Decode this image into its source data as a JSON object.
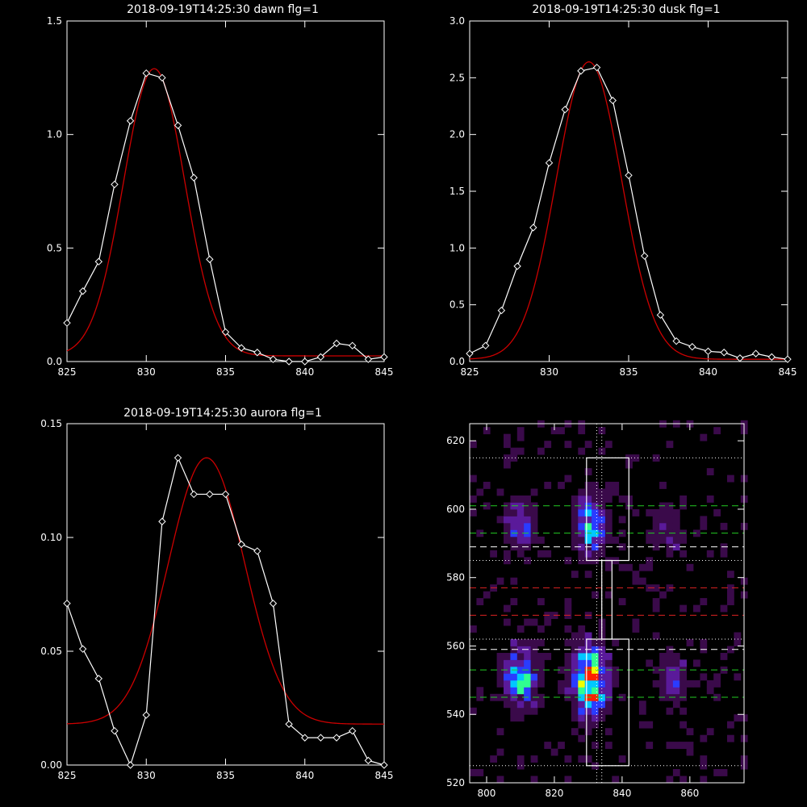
{
  "chart_data": [
    {
      "type": "line",
      "title": "2018-09-19T14:25:30 dawn flg=1",
      "xlim": [
        825,
        845
      ],
      "ylim": [
        0,
        1.5
      ],
      "x_ticks": [
        "825",
        "830",
        "835",
        "840",
        "845"
      ],
      "y_ticks": [
        "0.0",
        "0.5",
        "1.0",
        "1.5"
      ],
      "colors": {
        "observed": "#ffffff",
        "fit": "#cc0000"
      },
      "series": [
        {
          "role": "observed",
          "marker": "diamond",
          "x": [
            825,
            826,
            827,
            828,
            829,
            830,
            831,
            832,
            833,
            834,
            835,
            836,
            837,
            838,
            839,
            840,
            841,
            842,
            843,
            844,
            845
          ],
          "y": [
            0.17,
            0.31,
            0.44,
            0.78,
            1.06,
            1.27,
            1.25,
            1.04,
            0.81,
            0.45,
            0.13,
            0.06,
            0.04,
            0.01,
            0.0,
            0.0,
            0.02,
            0.08,
            0.07,
            0.01,
            0.02
          ]
        },
        {
          "role": "fit",
          "fit": {
            "shape": "gaussian",
            "amplitude": 1.265,
            "center": 830.5,
            "sigma": 1.93,
            "offset": 0.025
          }
        }
      ]
    },
    {
      "type": "line",
      "title": "2018-09-19T14:25:30 dusk flg=1",
      "xlim": [
        825,
        845
      ],
      "ylim": [
        0,
        3.0
      ],
      "x_ticks": [
        "825",
        "830",
        "835",
        "840",
        "845"
      ],
      "y_ticks": [
        "0.0",
        "0.5",
        "1.0",
        "1.5",
        "2.0",
        "2.5",
        "3.0"
      ],
      "colors": {
        "observed": "#ffffff",
        "fit": "#cc0000"
      },
      "series": [
        {
          "role": "observed",
          "marker": "diamond",
          "x": [
            825,
            826,
            827,
            828,
            829,
            830,
            831,
            832,
            833,
            834,
            835,
            836,
            837,
            838,
            839,
            840,
            841,
            842,
            843,
            844,
            845
          ],
          "y": [
            0.07,
            0.14,
            0.45,
            0.84,
            1.18,
            1.75,
            2.22,
            2.56,
            2.59,
            2.3,
            1.64,
            0.93,
            0.41,
            0.18,
            0.13,
            0.09,
            0.08,
            0.03,
            0.07,
            0.04,
            0.02
          ]
        },
        {
          "role": "fit",
          "fit": {
            "shape": "gaussian",
            "amplitude": 2.62,
            "center": 832.5,
            "sigma": 2.05,
            "offset": 0.02
          }
        }
      ]
    },
    {
      "type": "line",
      "title": "2018-09-19T14:25:30 aurora flg=1",
      "xlim": [
        825,
        845
      ],
      "ylim": [
        0,
        0.15
      ],
      "x_ticks": [
        "825",
        "830",
        "835",
        "840",
        "845"
      ],
      "y_ticks": [
        "0.00",
        "0.05",
        "0.10",
        "0.15"
      ],
      "colors": {
        "observed": "#ffffff",
        "fit": "#cc0000"
      },
      "series": [
        {
          "role": "observed",
          "marker": "diamond",
          "x": [
            825,
            826,
            827,
            828,
            829,
            830,
            831,
            832,
            833,
            834,
            835,
            836,
            837,
            838,
            839,
            840,
            841,
            842,
            843,
            844,
            845
          ],
          "y": [
            0.071,
            0.051,
            0.038,
            0.015,
            0.0,
            0.022,
            0.107,
            0.135,
            0.119,
            0.119,
            0.119,
            0.097,
            0.094,
            0.071,
            0.018,
            0.012,
            0.012,
            0.012,
            0.015,
            0.002,
            0.0
          ]
        },
        {
          "role": "fit",
          "fit": {
            "shape": "gaussian",
            "amplitude": 0.117,
            "center": 833.8,
            "sigma": 2.4,
            "offset": 0.018
          }
        }
      ]
    },
    {
      "type": "heatmap",
      "title": "",
      "xlim": [
        795,
        876
      ],
      "ylim": [
        520,
        625
      ],
      "x_ticks": [
        "800",
        "820",
        "840",
        "860"
      ],
      "y_ticks": [
        "520",
        "540",
        "560",
        "580",
        "600",
        "620"
      ],
      "pixel_size": 2,
      "colormap": [
        "#000000",
        "#3a0a4a",
        "#5a1a9a",
        "#2a3cff",
        "#00c8ff",
        "#30ff90",
        "#f0ff00",
        "#ff2000"
      ],
      "blobs": [
        {
          "x": 830.5,
          "y": 550,
          "sx": 3.2,
          "sy": 6.5,
          "amp": 1.0
        },
        {
          "x": 810,
          "y": 551,
          "sx": 3.2,
          "sy": 6.0,
          "amp": 0.62
        },
        {
          "x": 855,
          "y": 550,
          "sx": 3.0,
          "sy": 5.0,
          "amp": 0.3
        },
        {
          "x": 830.5,
          "y": 596,
          "sx": 3.0,
          "sy": 6.0,
          "amp": 0.55
        },
        {
          "x": 810,
          "y": 595,
          "sx": 3.0,
          "sy": 5.0,
          "amp": 0.35
        },
        {
          "x": 854,
          "y": 594,
          "sx": 3.0,
          "sy": 5.0,
          "amp": 0.18
        }
      ],
      "boxes": [
        {
          "x": [
            829.5,
            842
          ],
          "y": [
            585,
            615
          ]
        },
        {
          "x": [
            834,
            837
          ],
          "y": [
            562,
            585
          ]
        },
        {
          "x": [
            829.5,
            842
          ],
          "y": [
            525,
            562
          ]
        }
      ],
      "hlines": [
        {
          "y": 615,
          "style": "dotted",
          "color": "#ffffff"
        },
        {
          "y": 601,
          "style": "dashed",
          "color": "#22cc22"
        },
        {
          "y": 593,
          "style": "dashed",
          "color": "#22cc22"
        },
        {
          "y": 589,
          "style": "dashed",
          "color": "#ffffff"
        },
        {
          "y": 585,
          "style": "dotted",
          "color": "#ffffff"
        },
        {
          "y": 577,
          "style": "dashed",
          "color": "#dd2222"
        },
        {
          "y": 569,
          "style": "dashed",
          "color": "#dd2222"
        },
        {
          "y": 562,
          "style": "dotted",
          "color": "#ffffff"
        },
        {
          "y": 559,
          "style": "dashed",
          "color": "#ffffff"
        },
        {
          "y": 553,
          "style": "dashed",
          "color": "#22cc22"
        },
        {
          "y": 545,
          "style": "dashed",
          "color": "#22cc22"
        },
        {
          "y": 525,
          "style": "dotted",
          "color": "#ffffff"
        }
      ],
      "vlines": [
        {
          "x": 832.5,
          "style": "dotted",
          "color": "#ffffff"
        },
        {
          "x": 834,
          "style": "dotted",
          "color": "#ffffff"
        }
      ]
    }
  ]
}
